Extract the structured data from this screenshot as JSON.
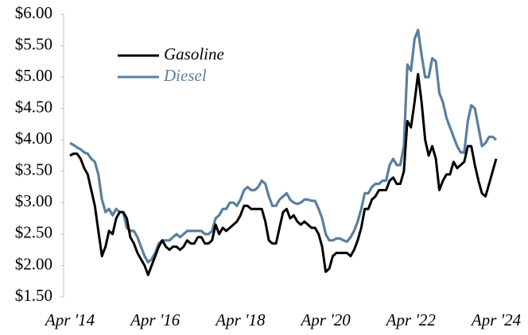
{
  "chart_data": {
    "type": "line",
    "x": [
      "2014-04",
      "2014-05",
      "2014-06",
      "2014-07",
      "2014-08",
      "2014-09",
      "2014-10",
      "2014-11",
      "2014-12",
      "2015-01",
      "2015-02",
      "2015-03",
      "2015-04",
      "2015-05",
      "2015-06",
      "2015-07",
      "2015-08",
      "2015-09",
      "2015-10",
      "2015-11",
      "2015-12",
      "2016-01",
      "2016-02",
      "2016-03",
      "2016-04",
      "2016-05",
      "2016-06",
      "2016-07",
      "2016-08",
      "2016-09",
      "2016-10",
      "2016-11",
      "2016-12",
      "2017-01",
      "2017-02",
      "2017-03",
      "2017-04",
      "2017-05",
      "2017-06",
      "2017-07",
      "2017-08",
      "2017-09",
      "2017-10",
      "2017-11",
      "2017-12",
      "2018-01",
      "2018-02",
      "2018-03",
      "2018-04",
      "2018-05",
      "2018-06",
      "2018-07",
      "2018-08",
      "2018-09",
      "2018-10",
      "2018-11",
      "2018-12",
      "2019-01",
      "2019-02",
      "2019-03",
      "2019-04",
      "2019-05",
      "2019-06",
      "2019-07",
      "2019-08",
      "2019-09",
      "2019-10",
      "2019-11",
      "2019-12",
      "2020-01",
      "2020-02",
      "2020-03",
      "2020-04",
      "2020-05",
      "2020-06",
      "2020-07",
      "2020-08",
      "2020-09",
      "2020-10",
      "2020-11",
      "2020-12",
      "2021-01",
      "2021-02",
      "2021-03",
      "2021-04",
      "2021-05",
      "2021-06",
      "2021-07",
      "2021-08",
      "2021-09",
      "2021-10",
      "2021-11",
      "2021-12",
      "2022-01",
      "2022-02",
      "2022-03",
      "2022-04",
      "2022-05",
      "2022-06",
      "2022-07",
      "2022-08",
      "2022-09",
      "2022-10",
      "2022-11",
      "2022-12",
      "2023-01",
      "2023-02",
      "2023-03",
      "2023-04",
      "2023-05",
      "2023-06",
      "2023-07",
      "2023-08",
      "2023-09",
      "2023-10",
      "2023-11",
      "2023-12",
      "2024-01",
      "2024-02",
      "2024-03",
      "2024-04"
    ],
    "series": [
      {
        "name": "Gasoline",
        "color": "#000000",
        "values": [
          3.75,
          3.78,
          3.78,
          3.7,
          3.55,
          3.45,
          3.2,
          2.95,
          2.55,
          2.15,
          2.3,
          2.55,
          2.5,
          2.75,
          2.85,
          2.85,
          2.75,
          2.45,
          2.35,
          2.2,
          2.1,
          2.0,
          1.85,
          2.0,
          2.15,
          2.3,
          2.4,
          2.3,
          2.25,
          2.3,
          2.3,
          2.25,
          2.3,
          2.4,
          2.35,
          2.35,
          2.45,
          2.45,
          2.35,
          2.35,
          2.4,
          2.65,
          2.5,
          2.6,
          2.55,
          2.6,
          2.65,
          2.7,
          2.8,
          2.95,
          2.95,
          2.9,
          2.9,
          2.9,
          2.9,
          2.7,
          2.4,
          2.35,
          2.35,
          2.6,
          2.85,
          2.9,
          2.75,
          2.8,
          2.7,
          2.65,
          2.7,
          2.65,
          2.6,
          2.6,
          2.5,
          2.3,
          1.9,
          1.95,
          2.15,
          2.2,
          2.2,
          2.2,
          2.2,
          2.15,
          2.25,
          2.4,
          2.6,
          2.9,
          2.9,
          3.05,
          3.1,
          3.2,
          3.2,
          3.2,
          3.35,
          3.4,
          3.3,
          3.3,
          3.5,
          4.3,
          4.2,
          4.6,
          5.05,
          4.6,
          4.0,
          3.75,
          3.9,
          3.7,
          3.2,
          3.35,
          3.45,
          3.45,
          3.65,
          3.55,
          3.6,
          3.65,
          3.9,
          3.9,
          3.6,
          3.35,
          3.15,
          3.1,
          3.3,
          3.5,
          3.7
        ]
      },
      {
        "name": "Diesel",
        "color": "#5b7f9e",
        "values": [
          3.95,
          3.92,
          3.88,
          3.85,
          3.8,
          3.78,
          3.7,
          3.65,
          3.45,
          3.05,
          2.85,
          2.9,
          2.8,
          2.9,
          2.85,
          2.85,
          2.6,
          2.55,
          2.55,
          2.45,
          2.3,
          2.15,
          2.05,
          2.1,
          2.2,
          2.35,
          2.4,
          2.4,
          2.4,
          2.45,
          2.5,
          2.45,
          2.5,
          2.55,
          2.55,
          2.55,
          2.55,
          2.55,
          2.5,
          2.5,
          2.55,
          2.75,
          2.8,
          2.9,
          2.9,
          3.0,
          3.0,
          2.95,
          3.05,
          3.2,
          3.25,
          3.2,
          3.2,
          3.25,
          3.35,
          3.3,
          3.1,
          2.95,
          2.95,
          3.05,
          3.1,
          3.15,
          3.05,
          3.0,
          2.98,
          3.0,
          3.05,
          3.05,
          3.03,
          3.03,
          2.9,
          2.75,
          2.5,
          2.4,
          2.4,
          2.43,
          2.43,
          2.4,
          2.38,
          2.45,
          2.55,
          2.7,
          2.9,
          3.15,
          3.15,
          3.25,
          3.3,
          3.3,
          3.35,
          3.35,
          3.6,
          3.7,
          3.6,
          3.6,
          3.9,
          5.2,
          5.1,
          5.6,
          5.75,
          5.35,
          5.0,
          5.0,
          5.3,
          5.25,
          4.75,
          4.6,
          4.35,
          4.2,
          4.05,
          3.9,
          3.8,
          3.8,
          4.3,
          4.55,
          4.5,
          4.2,
          3.9,
          3.95,
          4.05,
          4.05,
          4.0
        ]
      }
    ],
    "ylim": [
      1.5,
      6.0
    ],
    "yticks": [
      {
        "value": 1.5,
        "label": "$1.50"
      },
      {
        "value": 2.0,
        "label": "$2.00"
      },
      {
        "value": 2.5,
        "label": "$2.50"
      },
      {
        "value": 3.0,
        "label": "$3.00"
      },
      {
        "value": 3.5,
        "label": "$3.50"
      },
      {
        "value": 4.0,
        "label": "$4.00"
      },
      {
        "value": 4.5,
        "label": "$4.50"
      },
      {
        "value": 5.0,
        "label": "$5.00"
      },
      {
        "value": 5.5,
        "label": "$5.50"
      },
      {
        "value": 6.0,
        "label": "$6.00"
      }
    ],
    "xlim": [
      "2014-04",
      "2024-04"
    ],
    "xticks": [
      {
        "value": "2014-04",
        "label": "Apr '14"
      },
      {
        "value": "2016-04",
        "label": "Apr '16"
      },
      {
        "value": "2018-04",
        "label": "Apr '18"
      },
      {
        "value": "2020-04",
        "label": "Apr '20"
      },
      {
        "value": "2022-04",
        "label": "Apr '22"
      },
      {
        "value": "2024-04",
        "label": "Apr '24"
      }
    ],
    "legend": "upper left"
  }
}
